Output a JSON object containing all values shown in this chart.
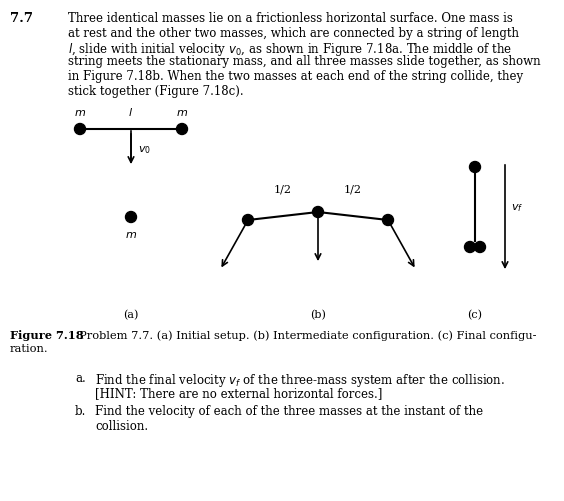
{
  "bg_color": "#ffffff",
  "text_color": "#000000",
  "problem_num": "7.7",
  "problem_text_lines": [
    "Three identical masses lie on a frictionless horizontal surface. One mass is",
    "at rest and the other two masses, which are connected by a string of length",
    "$l$, slide with initial velocity $v_0$, as shown in Figure 7.18a. The middle of the",
    "string meets the stationary mass, and all three masses slide together, as shown",
    "in Figure 7.18b. When the two masses at each end of the string collide, they",
    "stick together (Figure 7.18c)."
  ],
  "caption_bold": "Figure 7.18",
  "caption_rest": "  Problem 7.7. (a) Initial setup. (b) Intermediate configuration. (c) Final configu-\nration.",
  "qa": "a.  Find the final velocity $v_f$ of the three-mass system after the collision.\n     [HINT: There are no external horizontal forces.]",
  "qb": "b.  Find the velocity of each of the three masses at the instant of the\n      collision."
}
